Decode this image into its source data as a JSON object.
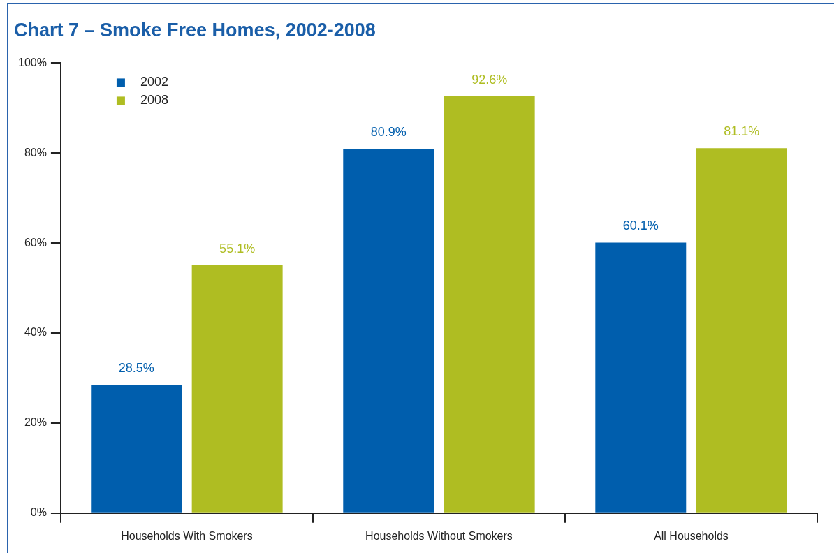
{
  "chart_data": {
    "type": "bar",
    "title": "Chart 7 – Smoke Free Homes, 2002-2008",
    "categories": [
      "Households With Smokers",
      "Households Without Smokers",
      "All Households"
    ],
    "series": [
      {
        "name": "2002",
        "color": "#005ead",
        "values": [
          28.5,
          80.9,
          60.1
        ],
        "value_labels": [
          "28.5%",
          "80.9%",
          "60.1%"
        ]
      },
      {
        "name": "2008",
        "color": "#afbd22",
        "values": [
          55.1,
          92.6,
          81.1
        ],
        "value_labels": [
          "55.1%",
          "92.6%",
          "81.1%"
        ]
      }
    ],
    "ylim": [
      0,
      100
    ],
    "yticks": [
      {
        "value": 0,
        "label": "0%"
      },
      {
        "value": 20,
        "label": "20%"
      },
      {
        "value": 40,
        "label": "40%"
      },
      {
        "value": 60,
        "label": "60%"
      },
      {
        "value": 80,
        "label": "80%"
      },
      {
        "value": 100,
        "label": "100%"
      }
    ],
    "grid": false,
    "legend": "top left"
  }
}
